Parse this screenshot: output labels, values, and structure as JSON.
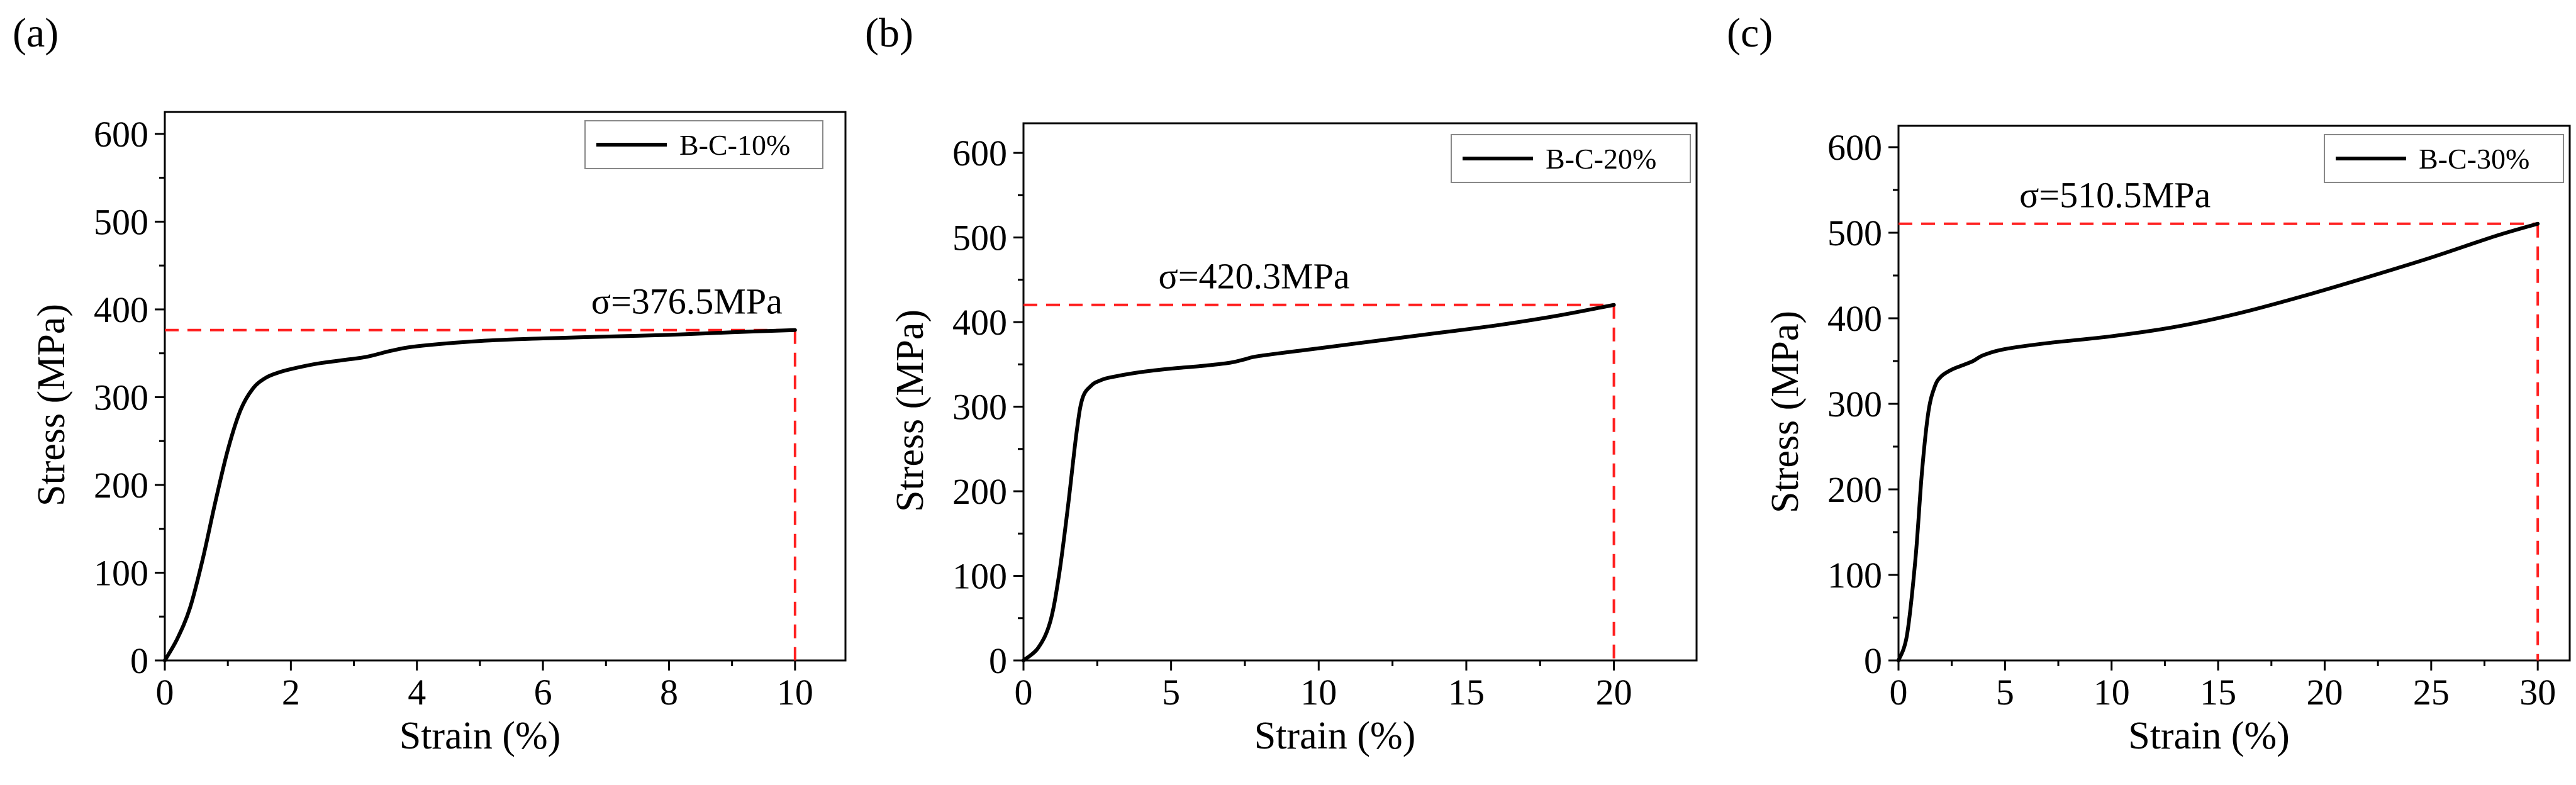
{
  "chart_data": [
    {
      "type": "line",
      "panel_label": "(a)",
      "xlabel": "Strain (%)",
      "ylabel": "Stress (MPa)",
      "xlim": [
        0,
        10.8
      ],
      "ylim": [
        0,
        625
      ],
      "xticks": [
        0,
        2,
        4,
        6,
        8,
        10
      ],
      "yticks": [
        0,
        100,
        200,
        300,
        400,
        500,
        600
      ],
      "legend": "B-C-10%",
      "legend_position": "top-right",
      "annotation": {
        "text": "σ=376.5MPa",
        "peak_x": 10,
        "peak_y": 376.5
      },
      "series": [
        {
          "name": "B-C-10%",
          "x": [
            0,
            0.2,
            0.4,
            0.6,
            0.8,
            1.0,
            1.2,
            1.4,
            1.6,
            1.8,
            2.0,
            2.4,
            2.8,
            3.2,
            3.6,
            4.0,
            5.0,
            6.0,
            7.0,
            8.0,
            9.0,
            10.0
          ],
          "y": [
            0,
            25,
            60,
            115,
            180,
            240,
            285,
            310,
            322,
            328,
            332,
            338,
            342,
            346,
            353,
            358,
            364,
            367,
            369,
            371,
            374,
            376.5
          ]
        }
      ]
    },
    {
      "type": "line",
      "panel_label": "(b)",
      "xlabel": "Strain (%)",
      "ylabel": "Stress (MPa)",
      "xlim": [
        0,
        22.8
      ],
      "ylim": [
        0,
        635
      ],
      "xticks": [
        0,
        5,
        10,
        15,
        20
      ],
      "yticks": [
        0,
        100,
        200,
        300,
        400,
        500,
        600
      ],
      "legend": "B-C-20%",
      "legend_position": "top-right",
      "annotation": {
        "text": "σ=420.3MPa",
        "peak_x": 20,
        "peak_y": 420.3
      },
      "series": [
        {
          "name": "B-C-20%",
          "x": [
            0,
            0.5,
            0.9,
            1.2,
            1.5,
            1.8,
            2.0,
            2.3,
            2.6,
            3.0,
            4.0,
            5.0,
            6.0,
            7.0,
            7.5,
            8.0,
            10.0,
            12.0,
            14.0,
            16.0,
            18.0,
            20.0
          ],
          "y": [
            0,
            15,
            45,
            100,
            180,
            270,
            310,
            325,
            331,
            335,
            341,
            345,
            348,
            352,
            356,
            360,
            369,
            378,
            387,
            396,
            407,
            420.3
          ]
        }
      ]
    },
    {
      "type": "line",
      "panel_label": "(c)",
      "xlabel": "Strain (%)",
      "ylabel": "Stress (MPa)",
      "xlim": [
        0,
        31.5
      ],
      "ylim": [
        0,
        625
      ],
      "xticks": [
        0,
        5,
        10,
        15,
        20,
        25,
        30
      ],
      "yticks": [
        0,
        100,
        200,
        300,
        400,
        500,
        600
      ],
      "legend": "B-C-30%",
      "legend_position": "top-right",
      "annotation": {
        "text": "σ=510.5MPa",
        "peak_x": 30,
        "peak_y": 510.5
      },
      "series": [
        {
          "name": "B-C-30%",
          "x": [
            0,
            0.4,
            0.8,
            1.1,
            1.4,
            1.7,
            2.0,
            2.5,
            3.0,
            3.5,
            4.0,
            5.0,
            7.0,
            10.0,
            13.0,
            16.0,
            19.0,
            22.0,
            25.0,
            28.0,
            30.0
          ],
          "y": [
            0,
            30,
            120,
            220,
            290,
            320,
            332,
            340,
            345,
            350,
            357,
            364,
            371,
            379,
            390,
            406,
            426,
            448,
            471,
            496,
            510.5
          ]
        }
      ]
    }
  ]
}
